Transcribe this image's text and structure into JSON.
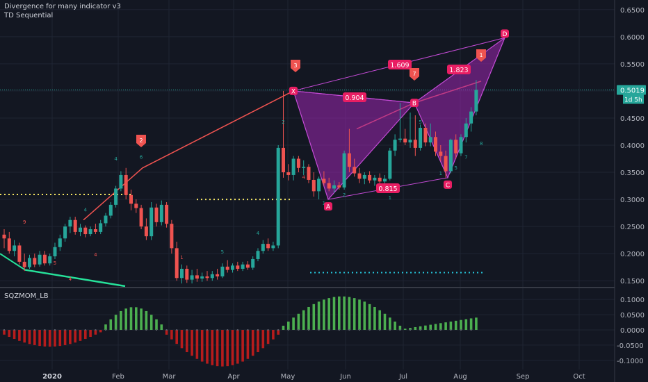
{
  "indicators": [
    "Divergence for many indicator v3",
    "TD Sequential"
  ],
  "sub_indicator": "SQZMOM_LB",
  "colors": {
    "up": "#26a69a",
    "down": "#ef5350",
    "pattern": "#9c27b0",
    "tag": "#e91e63",
    "mom_pos": "#4caf50",
    "mom_neg": "#b71c1c"
  },
  "chart_data": {
    "type": "candlestick",
    "x_ticks": [
      "2020",
      "Feb",
      "Mar",
      "Apr",
      "May",
      "Jun",
      "Jul",
      "Aug",
      "Sep",
      "Oct"
    ],
    "price_ticks": [
      "0.6500",
      "0.6000",
      "0.5500",
      "0.5000",
      "0.4500",
      "0.4000",
      "0.3500",
      "0.3000",
      "0.2500",
      "0.2000",
      "0.1500"
    ],
    "ylim": [
      0.14,
      0.66
    ],
    "momentum_ticks": [
      "0.1000",
      "0.0500",
      "0.0000",
      "-0.0500",
      "-0.1000"
    ],
    "momentum_ylim": [
      -0.13,
      0.13
    ],
    "last_price": "0.5019",
    "countdown": "1d 5h",
    "harmonic_pattern": {
      "points": [
        {
          "label": "X",
          "price": 0.5
        },
        {
          "label": "A",
          "price": 0.3
        },
        {
          "label": "B",
          "price": 0.478
        },
        {
          "label": "C",
          "price": 0.34
        },
        {
          "label": "D",
          "price": 0.598
        }
      ],
      "ratios": [
        "0.904",
        "0.815",
        "1.609",
        "1.823"
      ]
    },
    "signal_tags": [
      "2",
      "3",
      "7",
      "1"
    ],
    "candles": [
      {
        "o": 0.235,
        "h": 0.245,
        "l": 0.21,
        "c": 0.228
      },
      {
        "o": 0.228,
        "h": 0.24,
        "l": 0.2,
        "c": 0.205
      },
      {
        "o": 0.205,
        "h": 0.225,
        "l": 0.195,
        "c": 0.215
      },
      {
        "o": 0.215,
        "h": 0.22,
        "l": 0.18,
        "c": 0.185
      },
      {
        "o": 0.185,
        "h": 0.2,
        "l": 0.168,
        "c": 0.175
      },
      {
        "o": 0.175,
        "h": 0.198,
        "l": 0.172,
        "c": 0.192
      },
      {
        "o": 0.192,
        "h": 0.2,
        "l": 0.175,
        "c": 0.18
      },
      {
        "o": 0.18,
        "h": 0.205,
        "l": 0.176,
        "c": 0.198
      },
      {
        "o": 0.198,
        "h": 0.205,
        "l": 0.178,
        "c": 0.182
      },
      {
        "o": 0.182,
        "h": 0.2,
        "l": 0.178,
        "c": 0.195
      },
      {
        "o": 0.195,
        "h": 0.22,
        "l": 0.19,
        "c": 0.212
      },
      {
        "o": 0.212,
        "h": 0.235,
        "l": 0.205,
        "c": 0.228
      },
      {
        "o": 0.228,
        "h": 0.255,
        "l": 0.222,
        "c": 0.25
      },
      {
        "o": 0.25,
        "h": 0.268,
        "l": 0.238,
        "c": 0.262
      },
      {
        "o": 0.262,
        "h": 0.268,
        "l": 0.235,
        "c": 0.24
      },
      {
        "o": 0.24,
        "h": 0.255,
        "l": 0.232,
        "c": 0.248
      },
      {
        "o": 0.248,
        "h": 0.252,
        "l": 0.23,
        "c": 0.236
      },
      {
        "o": 0.236,
        "h": 0.25,
        "l": 0.232,
        "c": 0.245
      },
      {
        "o": 0.245,
        "h": 0.255,
        "l": 0.236,
        "c": 0.24
      },
      {
        "o": 0.24,
        "h": 0.262,
        "l": 0.236,
        "c": 0.256
      },
      {
        "o": 0.256,
        "h": 0.275,
        "l": 0.25,
        "c": 0.27
      },
      {
        "o": 0.27,
        "h": 0.295,
        "l": 0.265,
        "c": 0.29
      },
      {
        "o": 0.29,
        "h": 0.325,
        "l": 0.285,
        "c": 0.32
      },
      {
        "o": 0.32,
        "h": 0.352,
        "l": 0.315,
        "c": 0.345
      },
      {
        "o": 0.345,
        "h": 0.358,
        "l": 0.3,
        "c": 0.308
      },
      {
        "o": 0.308,
        "h": 0.318,
        "l": 0.28,
        "c": 0.292
      },
      {
        "o": 0.292,
        "h": 0.3,
        "l": 0.275,
        "c": 0.284
      },
      {
        "o": 0.284,
        "h": 0.29,
        "l": 0.245,
        "c": 0.25
      },
      {
        "o": 0.25,
        "h": 0.265,
        "l": 0.225,
        "c": 0.232
      },
      {
        "o": 0.232,
        "h": 0.295,
        "l": 0.225,
        "c": 0.285
      },
      {
        "o": 0.285,
        "h": 0.292,
        "l": 0.25,
        "c": 0.258
      },
      {
        "o": 0.258,
        "h": 0.298,
        "l": 0.252,
        "c": 0.29
      },
      {
        "o": 0.29,
        "h": 0.295,
        "l": 0.248,
        "c": 0.255
      },
      {
        "o": 0.255,
        "h": 0.262,
        "l": 0.2,
        "c": 0.21
      },
      {
        "o": 0.21,
        "h": 0.222,
        "l": 0.15,
        "c": 0.155
      },
      {
        "o": 0.155,
        "h": 0.18,
        "l": 0.145,
        "c": 0.172
      },
      {
        "o": 0.172,
        "h": 0.178,
        "l": 0.146,
        "c": 0.152
      },
      {
        "o": 0.152,
        "h": 0.17,
        "l": 0.145,
        "c": 0.16
      },
      {
        "o": 0.16,
        "h": 0.172,
        "l": 0.148,
        "c": 0.154
      },
      {
        "o": 0.154,
        "h": 0.165,
        "l": 0.148,
        "c": 0.158
      },
      {
        "o": 0.158,
        "h": 0.168,
        "l": 0.15,
        "c": 0.155
      },
      {
        "o": 0.155,
        "h": 0.168,
        "l": 0.15,
        "c": 0.162
      },
      {
        "o": 0.162,
        "h": 0.172,
        "l": 0.152,
        "c": 0.158
      },
      {
        "o": 0.158,
        "h": 0.182,
        "l": 0.155,
        "c": 0.176
      },
      {
        "o": 0.176,
        "h": 0.188,
        "l": 0.165,
        "c": 0.17
      },
      {
        "o": 0.17,
        "h": 0.182,
        "l": 0.165,
        "c": 0.178
      },
      {
        "o": 0.178,
        "h": 0.185,
        "l": 0.168,
        "c": 0.172
      },
      {
        "o": 0.172,
        "h": 0.185,
        "l": 0.168,
        "c": 0.18
      },
      {
        "o": 0.18,
        "h": 0.186,
        "l": 0.17,
        "c": 0.174
      },
      {
        "o": 0.174,
        "h": 0.195,
        "l": 0.17,
        "c": 0.19
      },
      {
        "o": 0.19,
        "h": 0.21,
        "l": 0.186,
        "c": 0.205
      },
      {
        "o": 0.205,
        "h": 0.225,
        "l": 0.2,
        "c": 0.218
      },
      {
        "o": 0.218,
        "h": 0.228,
        "l": 0.205,
        "c": 0.21
      },
      {
        "o": 0.21,
        "h": 0.222,
        "l": 0.205,
        "c": 0.215
      },
      {
        "o": 0.215,
        "h": 0.4,
        "l": 0.21,
        "c": 0.395
      },
      {
        "o": 0.395,
        "h": 0.5,
        "l": 0.34,
        "c": 0.35
      },
      {
        "o": 0.35,
        "h": 0.365,
        "l": 0.335,
        "c": 0.345
      },
      {
        "o": 0.345,
        "h": 0.38,
        "l": 0.335,
        "c": 0.375
      },
      {
        "o": 0.375,
        "h": 0.38,
        "l": 0.35,
        "c": 0.358
      },
      {
        "o": 0.358,
        "h": 0.372,
        "l": 0.345,
        "c": 0.36
      },
      {
        "o": 0.36,
        "h": 0.365,
        "l": 0.33,
        "c": 0.336
      },
      {
        "o": 0.336,
        "h": 0.35,
        "l": 0.305,
        "c": 0.315
      },
      {
        "o": 0.315,
        "h": 0.342,
        "l": 0.3,
        "c": 0.338
      },
      {
        "o": 0.338,
        "h": 0.352,
        "l": 0.325,
        "c": 0.33
      },
      {
        "o": 0.33,
        "h": 0.34,
        "l": 0.315,
        "c": 0.32
      },
      {
        "o": 0.32,
        "h": 0.335,
        "l": 0.312,
        "c": 0.326
      },
      {
        "o": 0.326,
        "h": 0.332,
        "l": 0.318,
        "c": 0.322
      },
      {
        "o": 0.322,
        "h": 0.39,
        "l": 0.318,
        "c": 0.385
      },
      {
        "o": 0.385,
        "h": 0.43,
        "l": 0.35,
        "c": 0.36
      },
      {
        "o": 0.36,
        "h": 0.375,
        "l": 0.342,
        "c": 0.348
      },
      {
        "o": 0.348,
        "h": 0.358,
        "l": 0.33,
        "c": 0.338
      },
      {
        "o": 0.338,
        "h": 0.35,
        "l": 0.328,
        "c": 0.345
      },
      {
        "o": 0.345,
        "h": 0.352,
        "l": 0.33,
        "c": 0.335
      },
      {
        "o": 0.335,
        "h": 0.345,
        "l": 0.325,
        "c": 0.34
      },
      {
        "o": 0.34,
        "h": 0.348,
        "l": 0.328,
        "c": 0.333
      },
      {
        "o": 0.333,
        "h": 0.345,
        "l": 0.325,
        "c": 0.338
      },
      {
        "o": 0.338,
        "h": 0.395,
        "l": 0.335,
        "c": 0.39
      },
      {
        "o": 0.39,
        "h": 0.42,
        "l": 0.38,
        "c": 0.41
      },
      {
        "o": 0.41,
        "h": 0.478,
        "l": 0.405,
        "c": 0.412
      },
      {
        "o": 0.412,
        "h": 0.43,
        "l": 0.4,
        "c": 0.405
      },
      {
        "o": 0.405,
        "h": 0.46,
        "l": 0.395,
        "c": 0.41
      },
      {
        "o": 0.41,
        "h": 0.455,
        "l": 0.38,
        "c": 0.395
      },
      {
        "o": 0.395,
        "h": 0.438,
        "l": 0.39,
        "c": 0.432
      },
      {
        "o": 0.432,
        "h": 0.44,
        "l": 0.398,
        "c": 0.405
      },
      {
        "o": 0.405,
        "h": 0.44,
        "l": 0.398,
        "c": 0.415
      },
      {
        "o": 0.415,
        "h": 0.425,
        "l": 0.38,
        "c": 0.388
      },
      {
        "o": 0.388,
        "h": 0.4,
        "l": 0.37,
        "c": 0.38
      },
      {
        "o": 0.38,
        "h": 0.39,
        "l": 0.34,
        "c": 0.352
      },
      {
        "o": 0.352,
        "h": 0.412,
        "l": 0.348,
        "c": 0.41
      },
      {
        "o": 0.41,
        "h": 0.42,
        "l": 0.375,
        "c": 0.385
      },
      {
        "o": 0.385,
        "h": 0.42,
        "l": 0.38,
        "c": 0.415
      },
      {
        "o": 0.415,
        "h": 0.45,
        "l": 0.405,
        "c": 0.44
      },
      {
        "o": 0.44,
        "h": 0.47,
        "l": 0.425,
        "c": 0.462
      },
      {
        "o": 0.462,
        "h": 0.52,
        "l": 0.455,
        "c": 0.502
      }
    ]
  }
}
